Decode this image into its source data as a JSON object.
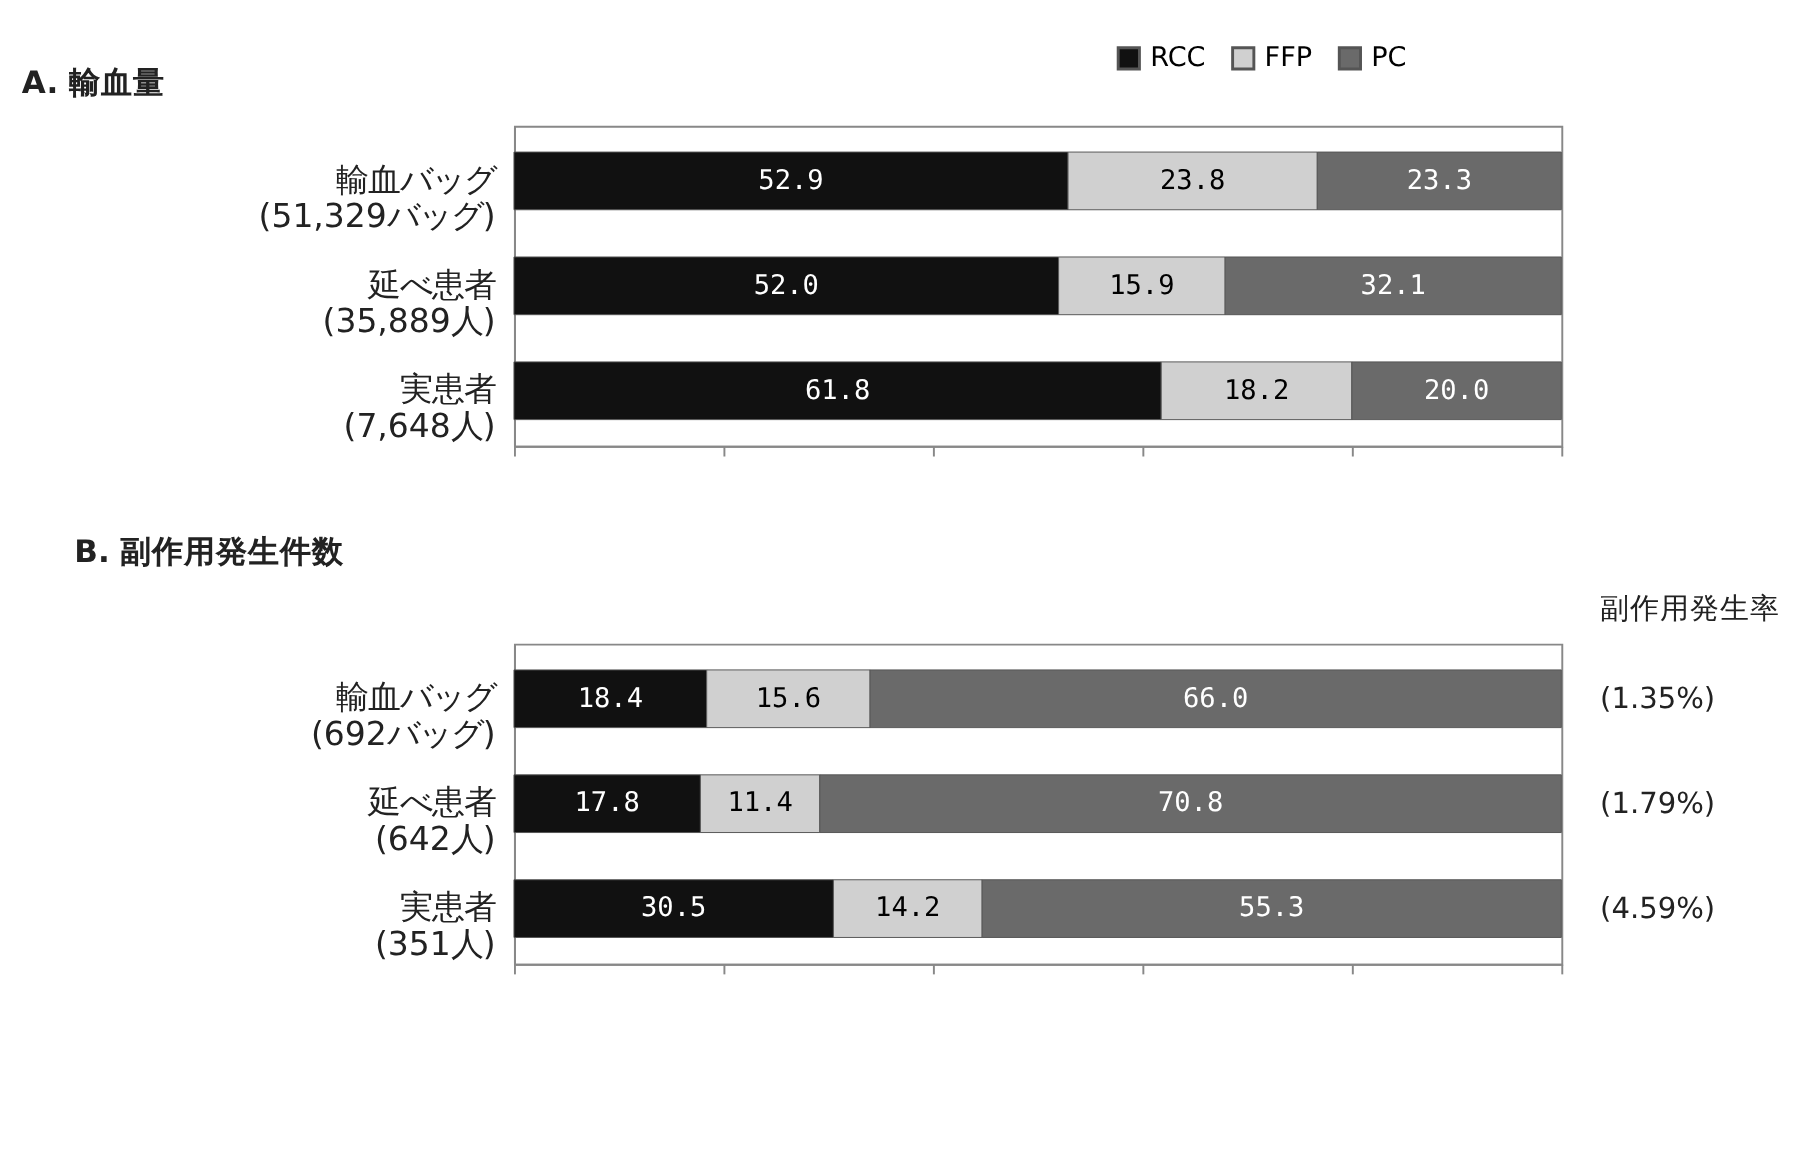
{
  "chart_data": [
    {
      "type": "bar",
      "orientation": "horizontal",
      "stacked": true,
      "title": "A. 輸血量",
      "categories": [
        "輸血バッグ\n(51,329バッグ)",
        "延べ患者\n(35,889人)",
        "実患者\n(7,648人)"
      ],
      "series": [
        {
          "name": "RCC",
          "color": "#111111",
          "values": [
            52.9,
            52.0,
            61.8
          ],
          "value_labels": [
            "52.9",
            "52.0",
            "61.8"
          ]
        },
        {
          "name": "FFP",
          "color": "#d0d0d0",
          "values": [
            23.8,
            15.9,
            18.2
          ],
          "value_labels": [
            "23.8",
            "15.9",
            "18.2"
          ]
        },
        {
          "name": "PC",
          "color": "#6a6a6a",
          "values": [
            23.3,
            32.1,
            20.0
          ],
          "value_labels": [
            "23.3",
            "32.1",
            "20.0"
          ]
        }
      ],
      "xlim": [
        0,
        100
      ],
      "xticks": [
        {
          "value": 0,
          "label": null
        },
        {
          "value": 20,
          "label": null
        },
        {
          "value": 40,
          "label": null
        },
        {
          "value": 60,
          "label": null
        },
        {
          "value": 80,
          "label": null
        },
        {
          "value": 100,
          "label": null
        }
      ],
      "tick_labels": "y",
      "legend": "top right",
      "grid": false
    },
    {
      "type": "bar",
      "orientation": "horizontal",
      "stacked": true,
      "title": "B. 副作用発生件数",
      "categories": [
        "輸血バッグ\n(692バッグ)",
        "延べ患者\n(642人)",
        "実患者\n(351人)"
      ],
      "series": [
        {
          "name": "RCC",
          "color": "#111111",
          "values": [
            18.4,
            17.8,
            30.5
          ],
          "value_labels": [
            "18.4",
            "17.8",
            "30.5"
          ]
        },
        {
          "name": "FFP",
          "color": "#d0d0d0",
          "values": [
            15.6,
            11.4,
            14.2
          ],
          "value_labels": [
            "15.6",
            "11.4",
            "14.2"
          ]
        },
        {
          "name": "PC",
          "color": "#6a6a6a",
          "values": [
            66.0,
            70.8,
            55.3
          ],
          "value_labels": [
            "66.0",
            "70.8",
            "55.3"
          ]
        }
      ],
      "xlim": [
        0,
        100
      ],
      "xticks": [
        {
          "value": 0,
          "label": null
        },
        {
          "value": 20,
          "label": null
        },
        {
          "value": 40,
          "label": null
        },
        {
          "value": 60,
          "label": null
        },
        {
          "value": 80,
          "label": null
        },
        {
          "value": 100,
          "label": null
        }
      ],
      "tick_labels": "y",
      "legend": false,
      "grid": false,
      "annotations": [
        "副作用発生率",
        "(1.35%)",
        "(1.79%)",
        "(4.59%)"
      ]
    }
  ]
}
